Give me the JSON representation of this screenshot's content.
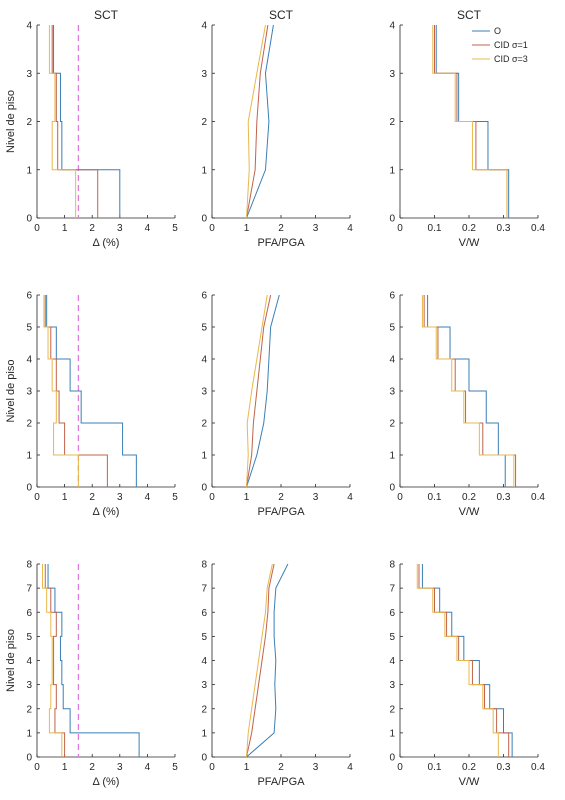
{
  "colors": {
    "O": "#3b7fb5",
    "CID1": "#c0634a",
    "CID3": "#e8b84c",
    "limit": "#e07be0",
    "axis": "#262626"
  },
  "legend": {
    "O": "O",
    "CID1": "CID σ=1",
    "CID3": "CID σ=3"
  },
  "chart_data": [
    {
      "type": "line",
      "row": 0,
      "col": 0,
      "title": "SCT",
      "xlabel": "Δ (%)",
      "ylabel": "Nivel de piso",
      "xlim": [
        0,
        5
      ],
      "ylim": [
        0,
        4
      ],
      "xticks": [
        "0",
        "1",
        "2",
        "3",
        "4",
        "5"
      ],
      "yticks": [
        "0",
        "1",
        "2",
        "3",
        "4"
      ],
      "ref_line": 1.5,
      "series": [
        {
          "name": "O",
          "steps": [
            [
              0,
              1,
              3.0
            ],
            [
              1,
              2,
              0.9
            ],
            [
              2,
              3,
              0.85
            ],
            [
              3,
              4,
              0.6
            ]
          ]
        },
        {
          "name": "CID σ=1",
          "steps": [
            [
              0,
              1,
              2.2
            ],
            [
              1,
              2,
              0.75
            ],
            [
              2,
              3,
              0.7
            ],
            [
              3,
              4,
              0.55
            ]
          ]
        },
        {
          "name": "CID σ=3",
          "steps": [
            [
              0,
              1,
              1.4
            ],
            [
              1,
              2,
              0.55
            ],
            [
              2,
              3,
              0.65
            ],
            [
              3,
              4,
              0.45
            ]
          ]
        }
      ]
    },
    {
      "type": "line",
      "row": 0,
      "col": 1,
      "title": "SCT",
      "xlabel": "PFA/PGA",
      "ylabel": "",
      "xlim": [
        0,
        4
      ],
      "ylim": [
        0,
        4
      ],
      "xticks": [
        "0",
        "1",
        "2",
        "3",
        "4"
      ],
      "yticks": [
        "0",
        "1",
        "2",
        "3",
        "4"
      ],
      "series": [
        {
          "name": "O",
          "points": [
            [
              1.0,
              0
            ],
            [
              1.55,
              1
            ],
            [
              1.65,
              2
            ],
            [
              1.55,
              3
            ],
            [
              1.78,
              4
            ]
          ]
        },
        {
          "name": "CID σ=1",
          "points": [
            [
              1.0,
              0
            ],
            [
              1.25,
              1
            ],
            [
              1.3,
              2
            ],
            [
              1.4,
              3
            ],
            [
              1.62,
              4
            ]
          ]
        },
        {
          "name": "CID σ=3",
          "points": [
            [
              1.0,
              0
            ],
            [
              1.08,
              1
            ],
            [
              1.05,
              2
            ],
            [
              1.3,
              3
            ],
            [
              1.55,
              4
            ]
          ]
        }
      ]
    },
    {
      "type": "line",
      "row": 0,
      "col": 2,
      "title": "SCT",
      "xlabel": "V/W",
      "ylabel": "",
      "xlim": [
        0,
        0.4
      ],
      "ylim": [
        0,
        4
      ],
      "xticks": [
        "0",
        "0.1",
        "0.2",
        "0.3",
        "0.4"
      ],
      "yticks": [
        "0",
        "1",
        "2",
        "3",
        "4"
      ],
      "legend": true,
      "series": [
        {
          "name": "O",
          "steps": [
            [
              0,
              1,
              0.315
            ],
            [
              1,
              2,
              0.255
            ],
            [
              2,
              3,
              0.17
            ],
            [
              3,
              4,
              0.105
            ]
          ]
        },
        {
          "name": "CID σ=1",
          "steps": [
            [
              0,
              1,
              0.31
            ],
            [
              1,
              2,
              0.22
            ],
            [
              2,
              3,
              0.165
            ],
            [
              3,
              4,
              0.1
            ]
          ]
        },
        {
          "name": "CID σ=3",
          "steps": [
            [
              0,
              1,
              0.31
            ],
            [
              1,
              2,
              0.21
            ],
            [
              2,
              3,
              0.16
            ],
            [
              3,
              4,
              0.095
            ]
          ]
        }
      ]
    },
    {
      "type": "line",
      "row": 1,
      "col": 0,
      "title": "",
      "xlabel": "Δ (%)",
      "ylabel": "Nivel de piso",
      "xlim": [
        0,
        5
      ],
      "ylim": [
        0,
        6
      ],
      "xticks": [
        "0",
        "1",
        "2",
        "3",
        "4",
        "5"
      ],
      "yticks": [
        "0",
        "1",
        "2",
        "3",
        "4",
        "5",
        "6"
      ],
      "ref_line": 1.5,
      "series": [
        {
          "name": "O",
          "steps": [
            [
              0,
              1,
              3.6
            ],
            [
              1,
              2,
              3.1
            ],
            [
              2,
              3,
              1.6
            ],
            [
              3,
              4,
              1.2
            ],
            [
              4,
              5,
              0.7
            ],
            [
              5,
              6,
              0.35
            ]
          ]
        },
        {
          "name": "CID σ=1",
          "steps": [
            [
              0,
              1,
              2.55
            ],
            [
              1,
              2,
              1.0
            ],
            [
              2,
              3,
              0.8
            ],
            [
              3,
              4,
              0.7
            ],
            [
              4,
              5,
              0.5
            ],
            [
              5,
              6,
              0.3
            ]
          ]
        },
        {
          "name": "CID σ=3",
          "steps": [
            [
              0,
              1,
              1.5
            ],
            [
              1,
              2,
              0.6
            ],
            [
              2,
              3,
              0.7
            ],
            [
              3,
              4,
              0.55
            ],
            [
              4,
              5,
              0.4
            ],
            [
              5,
              6,
              0.25
            ]
          ]
        }
      ]
    },
    {
      "type": "line",
      "row": 1,
      "col": 1,
      "title": "",
      "xlabel": "PFA/PGA",
      "ylabel": "",
      "xlim": [
        0,
        4
      ],
      "ylim": [
        0,
        6
      ],
      "xticks": [
        "0",
        "1",
        "2",
        "3",
        "4"
      ],
      "yticks": [
        "0",
        "1",
        "2",
        "3",
        "4",
        "5",
        "6"
      ],
      "series": [
        {
          "name": "O",
          "points": [
            [
              1.0,
              0
            ],
            [
              1.3,
              1
            ],
            [
              1.5,
              2
            ],
            [
              1.6,
              3
            ],
            [
              1.65,
              4
            ],
            [
              1.7,
              5
            ],
            [
              1.95,
              6
            ]
          ]
        },
        {
          "name": "CID σ=1",
          "points": [
            [
              1.0,
              0
            ],
            [
              1.15,
              1
            ],
            [
              1.2,
              2
            ],
            [
              1.3,
              3
            ],
            [
              1.4,
              4
            ],
            [
              1.5,
              5
            ],
            [
              1.7,
              6
            ]
          ]
        },
        {
          "name": "CID σ=3",
          "points": [
            [
              1.0,
              0
            ],
            [
              1.05,
              1
            ],
            [
              1.02,
              2
            ],
            [
              1.15,
              3
            ],
            [
              1.3,
              4
            ],
            [
              1.45,
              5
            ],
            [
              1.6,
              6
            ]
          ]
        }
      ]
    },
    {
      "type": "line",
      "row": 1,
      "col": 2,
      "title": "",
      "xlabel": "V/W",
      "ylabel": "",
      "xlim": [
        0,
        0.4
      ],
      "ylim": [
        0,
        6
      ],
      "xticks": [
        "0",
        "0.1",
        "0.2",
        "0.3",
        "0.4"
      ],
      "yticks": [
        "0",
        "1",
        "2",
        "3",
        "4",
        "5",
        "6"
      ],
      "series": [
        {
          "name": "O",
          "steps": [
            [
              0,
              1,
              0.305
            ],
            [
              1,
              2,
              0.285
            ],
            [
              2,
              3,
              0.25
            ],
            [
              3,
              4,
              0.2
            ],
            [
              4,
              5,
              0.145
            ],
            [
              5,
              6,
              0.08
            ]
          ]
        },
        {
          "name": "CID σ=1",
          "steps": [
            [
              0,
              1,
              0.335
            ],
            [
              1,
              2,
              0.24
            ],
            [
              2,
              3,
              0.19
            ],
            [
              3,
              4,
              0.16
            ],
            [
              4,
              5,
              0.11
            ],
            [
              5,
              6,
              0.07
            ]
          ]
        },
        {
          "name": "CID σ=3",
          "steps": [
            [
              0,
              1,
              0.33
            ],
            [
              1,
              2,
              0.23
            ],
            [
              2,
              3,
              0.185
            ],
            [
              3,
              4,
              0.15
            ],
            [
              4,
              5,
              0.105
            ],
            [
              5,
              6,
              0.065
            ]
          ]
        }
      ]
    },
    {
      "type": "line",
      "row": 2,
      "col": 0,
      "title": "",
      "xlabel": "Δ (%)",
      "ylabel": "Nivel de piso",
      "xlim": [
        0,
        5
      ],
      "ylim": [
        0,
        8
      ],
      "xticks": [
        "0",
        "1",
        "2",
        "3",
        "4",
        "5"
      ],
      "yticks": [
        "0",
        "1",
        "2",
        "3",
        "4",
        "5",
        "6",
        "7",
        "8"
      ],
      "ref_line": 1.5,
      "series": [
        {
          "name": "O",
          "steps": [
            [
              0,
              1,
              3.7
            ],
            [
              1,
              2,
              1.2
            ],
            [
              2,
              3,
              0.95
            ],
            [
              3,
              4,
              0.9
            ],
            [
              4,
              5,
              0.85
            ],
            [
              5,
              6,
              0.9
            ],
            [
              6,
              7,
              0.65
            ],
            [
              7,
              8,
              0.4
            ]
          ]
        },
        {
          "name": "CID σ=1",
          "steps": [
            [
              0,
              1,
              1.0
            ],
            [
              1,
              2,
              0.65
            ],
            [
              2,
              3,
              0.7
            ],
            [
              3,
              4,
              0.6
            ],
            [
              4,
              5,
              0.6
            ],
            [
              5,
              6,
              0.7
            ],
            [
              6,
              7,
              0.5
            ],
            [
              7,
              8,
              0.3
            ]
          ]
        },
        {
          "name": "CID σ=3",
          "steps": [
            [
              0,
              1,
              0.9
            ],
            [
              1,
              2,
              0.45
            ],
            [
              2,
              3,
              0.5
            ],
            [
              3,
              4,
              0.55
            ],
            [
              4,
              5,
              0.55
            ],
            [
              5,
              6,
              0.5
            ],
            [
              6,
              7,
              0.35
            ],
            [
              7,
              8,
              0.2
            ]
          ]
        }
      ]
    },
    {
      "type": "line",
      "row": 2,
      "col": 1,
      "title": "",
      "xlabel": "PFA/PGA",
      "ylabel": "",
      "xlim": [
        0,
        4
      ],
      "ylim": [
        0,
        8
      ],
      "xticks": [
        "0",
        "1",
        "2",
        "3",
        "4"
      ],
      "yticks": [
        "0",
        "1",
        "2",
        "3",
        "4",
        "5",
        "6",
        "7",
        "8"
      ],
      "series": [
        {
          "name": "O",
          "points": [
            [
              1.0,
              0
            ],
            [
              1.8,
              1
            ],
            [
              1.85,
              2
            ],
            [
              1.82,
              3
            ],
            [
              1.85,
              4
            ],
            [
              1.8,
              5
            ],
            [
              1.8,
              6
            ],
            [
              1.85,
              7
            ],
            [
              2.2,
              8
            ]
          ]
        },
        {
          "name": "CID σ=1",
          "points": [
            [
              1.0,
              0
            ],
            [
              1.15,
              1
            ],
            [
              1.25,
              2
            ],
            [
              1.35,
              3
            ],
            [
              1.45,
              4
            ],
            [
              1.55,
              5
            ],
            [
              1.62,
              6
            ],
            [
              1.65,
              7
            ],
            [
              1.8,
              8
            ]
          ]
        },
        {
          "name": "CID σ=3",
          "points": [
            [
              1.0,
              0
            ],
            [
              1.05,
              1
            ],
            [
              1.15,
              2
            ],
            [
              1.25,
              3
            ],
            [
              1.35,
              4
            ],
            [
              1.45,
              5
            ],
            [
              1.55,
              6
            ],
            [
              1.6,
              7
            ],
            [
              1.75,
              8
            ]
          ]
        }
      ]
    },
    {
      "type": "line",
      "row": 2,
      "col": 2,
      "title": "",
      "xlabel": "V/W",
      "ylabel": "",
      "xlim": [
        0,
        0.4
      ],
      "ylim": [
        0,
        8
      ],
      "xticks": [
        "0",
        "0.1",
        "0.2",
        "0.3",
        "0.4"
      ],
      "yticks": [
        "0",
        "1",
        "2",
        "3",
        "4",
        "5",
        "6",
        "7",
        "8"
      ],
      "series": [
        {
          "name": "O",
          "steps": [
            [
              0,
              1,
              0.325
            ],
            [
              1,
              2,
              0.3
            ],
            [
              2,
              3,
              0.26
            ],
            [
              3,
              4,
              0.23
            ],
            [
              4,
              5,
              0.185
            ],
            [
              5,
              6,
              0.15
            ],
            [
              6,
              7,
              0.115
            ],
            [
              7,
              8,
              0.065
            ]
          ]
        },
        {
          "name": "CID σ=1",
          "steps": [
            [
              0,
              1,
              0.315
            ],
            [
              1,
              2,
              0.28
            ],
            [
              2,
              3,
              0.245
            ],
            [
              3,
              4,
              0.21
            ],
            [
              4,
              5,
              0.17
            ],
            [
              5,
              6,
              0.135
            ],
            [
              6,
              7,
              0.1
            ],
            [
              7,
              8,
              0.055
            ]
          ]
        },
        {
          "name": "CID σ=3",
          "steps": [
            [
              0,
              1,
              0.285
            ],
            [
              1,
              2,
              0.27
            ],
            [
              2,
              3,
              0.24
            ],
            [
              3,
              4,
              0.2
            ],
            [
              4,
              5,
              0.165
            ],
            [
              5,
              6,
              0.13
            ],
            [
              6,
              7,
              0.095
            ],
            [
              7,
              8,
              0.05
            ]
          ]
        }
      ]
    }
  ]
}
